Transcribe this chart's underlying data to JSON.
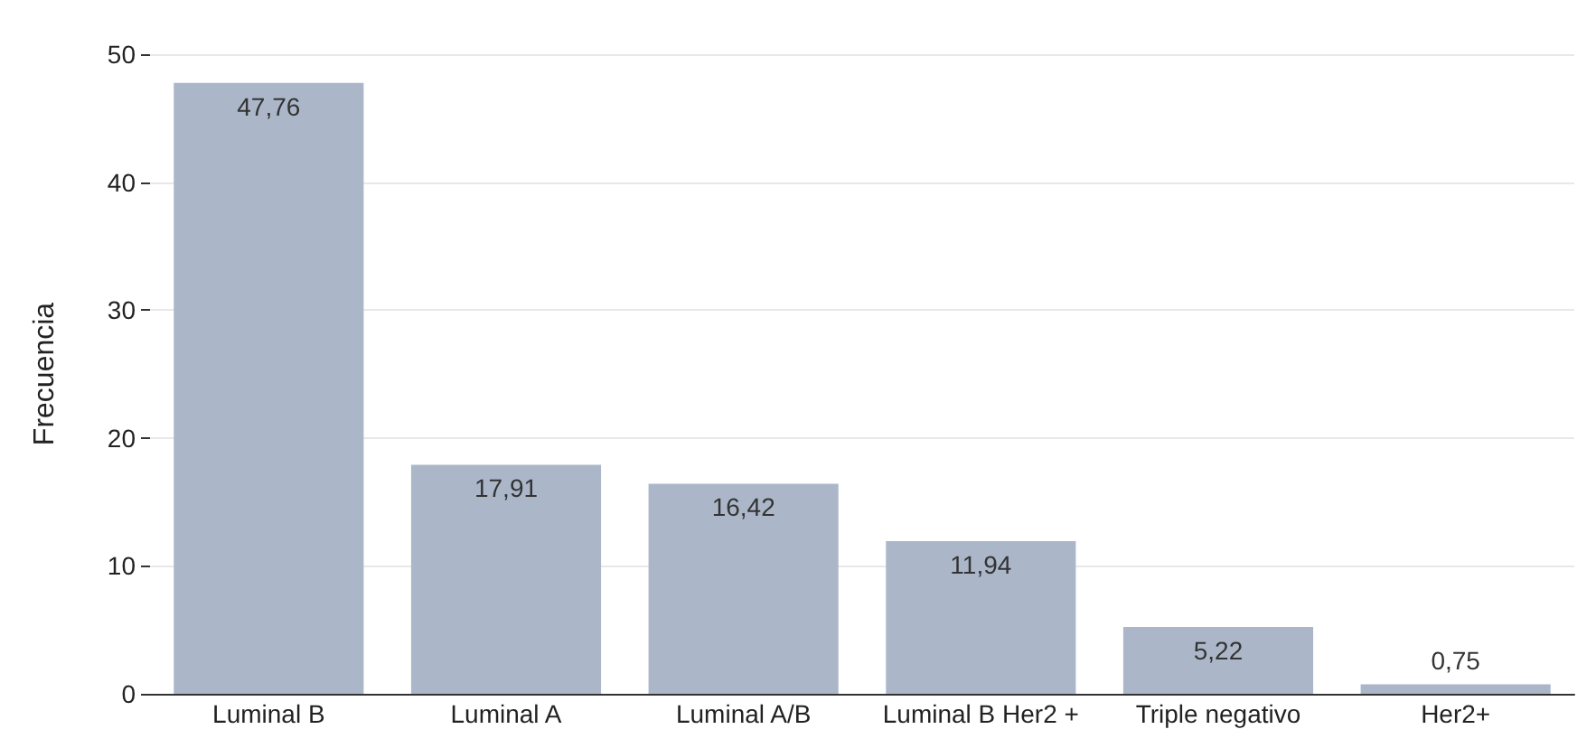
{
  "chart_data": {
    "type": "bar",
    "ylabel": "Frecuencia",
    "categories": [
      "Luminal B",
      "Luminal A",
      "Luminal A/B",
      "Luminal B Her2 +",
      "Triple negativo",
      "Her2+"
    ],
    "values": [
      47.76,
      17.91,
      16.42,
      11.94,
      5.22,
      0.75
    ],
    "value_labels": [
      "47,76",
      "17,91",
      "16,42",
      "11,94",
      "5,22",
      "0,75"
    ],
    "color": "#abb7c9",
    "ylim": [
      0,
      50
    ],
    "yticks": [
      0,
      10,
      20,
      30,
      40,
      50
    ],
    "grid": "y"
  }
}
